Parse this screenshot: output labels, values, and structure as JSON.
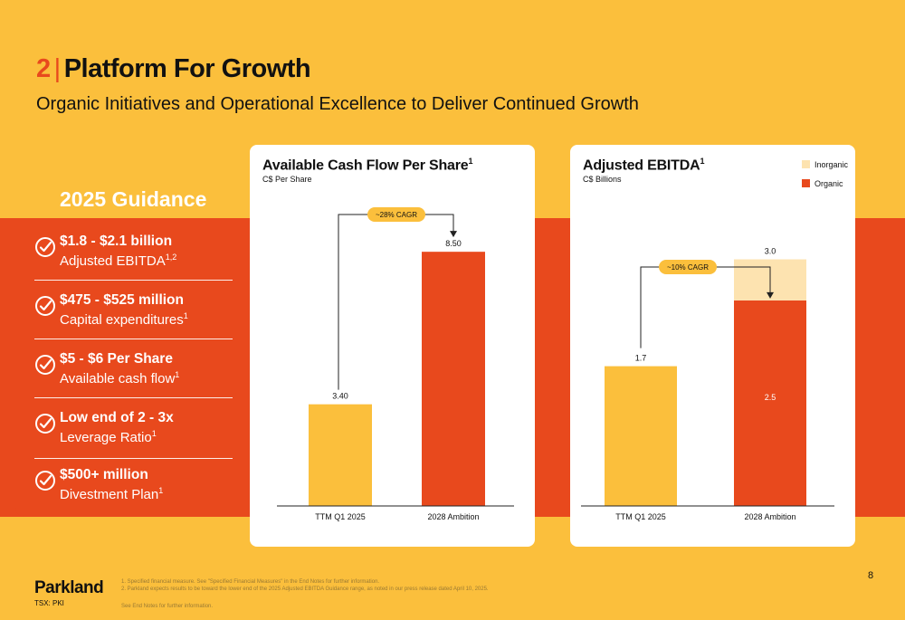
{
  "header": {
    "section_number": "2",
    "separator": "|",
    "title": "Platform For Growth",
    "subtitle": "Organic Initiatives and Operational Excellence to Deliver Continued Growth"
  },
  "guidance": {
    "title": "2025 Guidance",
    "items": [
      {
        "main": "$1.8 - $2.1 billion",
        "sub": "Adjusted EBITDA",
        "sup": "1,2"
      },
      {
        "main": "$475 - $525 million",
        "sub": "Capital expenditures",
        "sup": "1"
      },
      {
        "main": "$5 - $6 Per Share",
        "sub": "Available cash flow",
        "sup": "1"
      },
      {
        "main": "Low end of 2 - 3x",
        "sub": "Leverage Ratio",
        "sup": "1"
      },
      {
        "main": "$500+ million",
        "sub": "Divestment Plan",
        "sup": "1"
      }
    ]
  },
  "chart_data": [
    {
      "type": "bar",
      "title": "Available Cash Flow Per Share",
      "title_sup": "1",
      "subtitle": "C$ Per Share",
      "categories": [
        "TTM Q1 2025",
        "2028 Ambition"
      ],
      "values": [
        3.4,
        8.5
      ],
      "value_labels": [
        "3.40",
        "8.50"
      ],
      "ylim": [
        0,
        10.2
      ],
      "annotation": "~28% CAGR",
      "colors": [
        "#FBBF3C",
        "#E8491D"
      ]
    },
    {
      "type": "bar",
      "stacked": true,
      "title": "Adjusted EBITDA",
      "title_sup": "1",
      "subtitle": "C$ Billions",
      "categories": [
        "TTM Q1 2025",
        "2028 Ambition"
      ],
      "series": [
        {
          "name": "Organic",
          "values": [
            1.7,
            2.5
          ],
          "color": "#E8491D"
        },
        {
          "name": "Inorganic",
          "values": [
            0,
            0.5
          ],
          "color": "#FDE3B0"
        }
      ],
      "first_bar_color": "#FBBF3C",
      "total_labels": [
        "1.7",
        "3.0"
      ],
      "inner_labels": [
        "",
        "2.5"
      ],
      "ylim": [
        0,
        3.6
      ],
      "annotation": "~10% CAGR",
      "legend": [
        "Inorganic",
        "Organic"
      ],
      "legend_position": "top-right"
    }
  ],
  "footer": {
    "brand": "Parkland",
    "ticker": "TSX: PKI",
    "notes": [
      "1. Specified financial measure. See \"Specified Financial Measures\" in the End Notes for further information.",
      "2. Parkland expects results to be toward the lower end of the 2025 Adjusted EBITDA Guidance range, as noted in our press release dated April 10, 2025.",
      "See End Notes for further information."
    ],
    "page_number": "8"
  }
}
